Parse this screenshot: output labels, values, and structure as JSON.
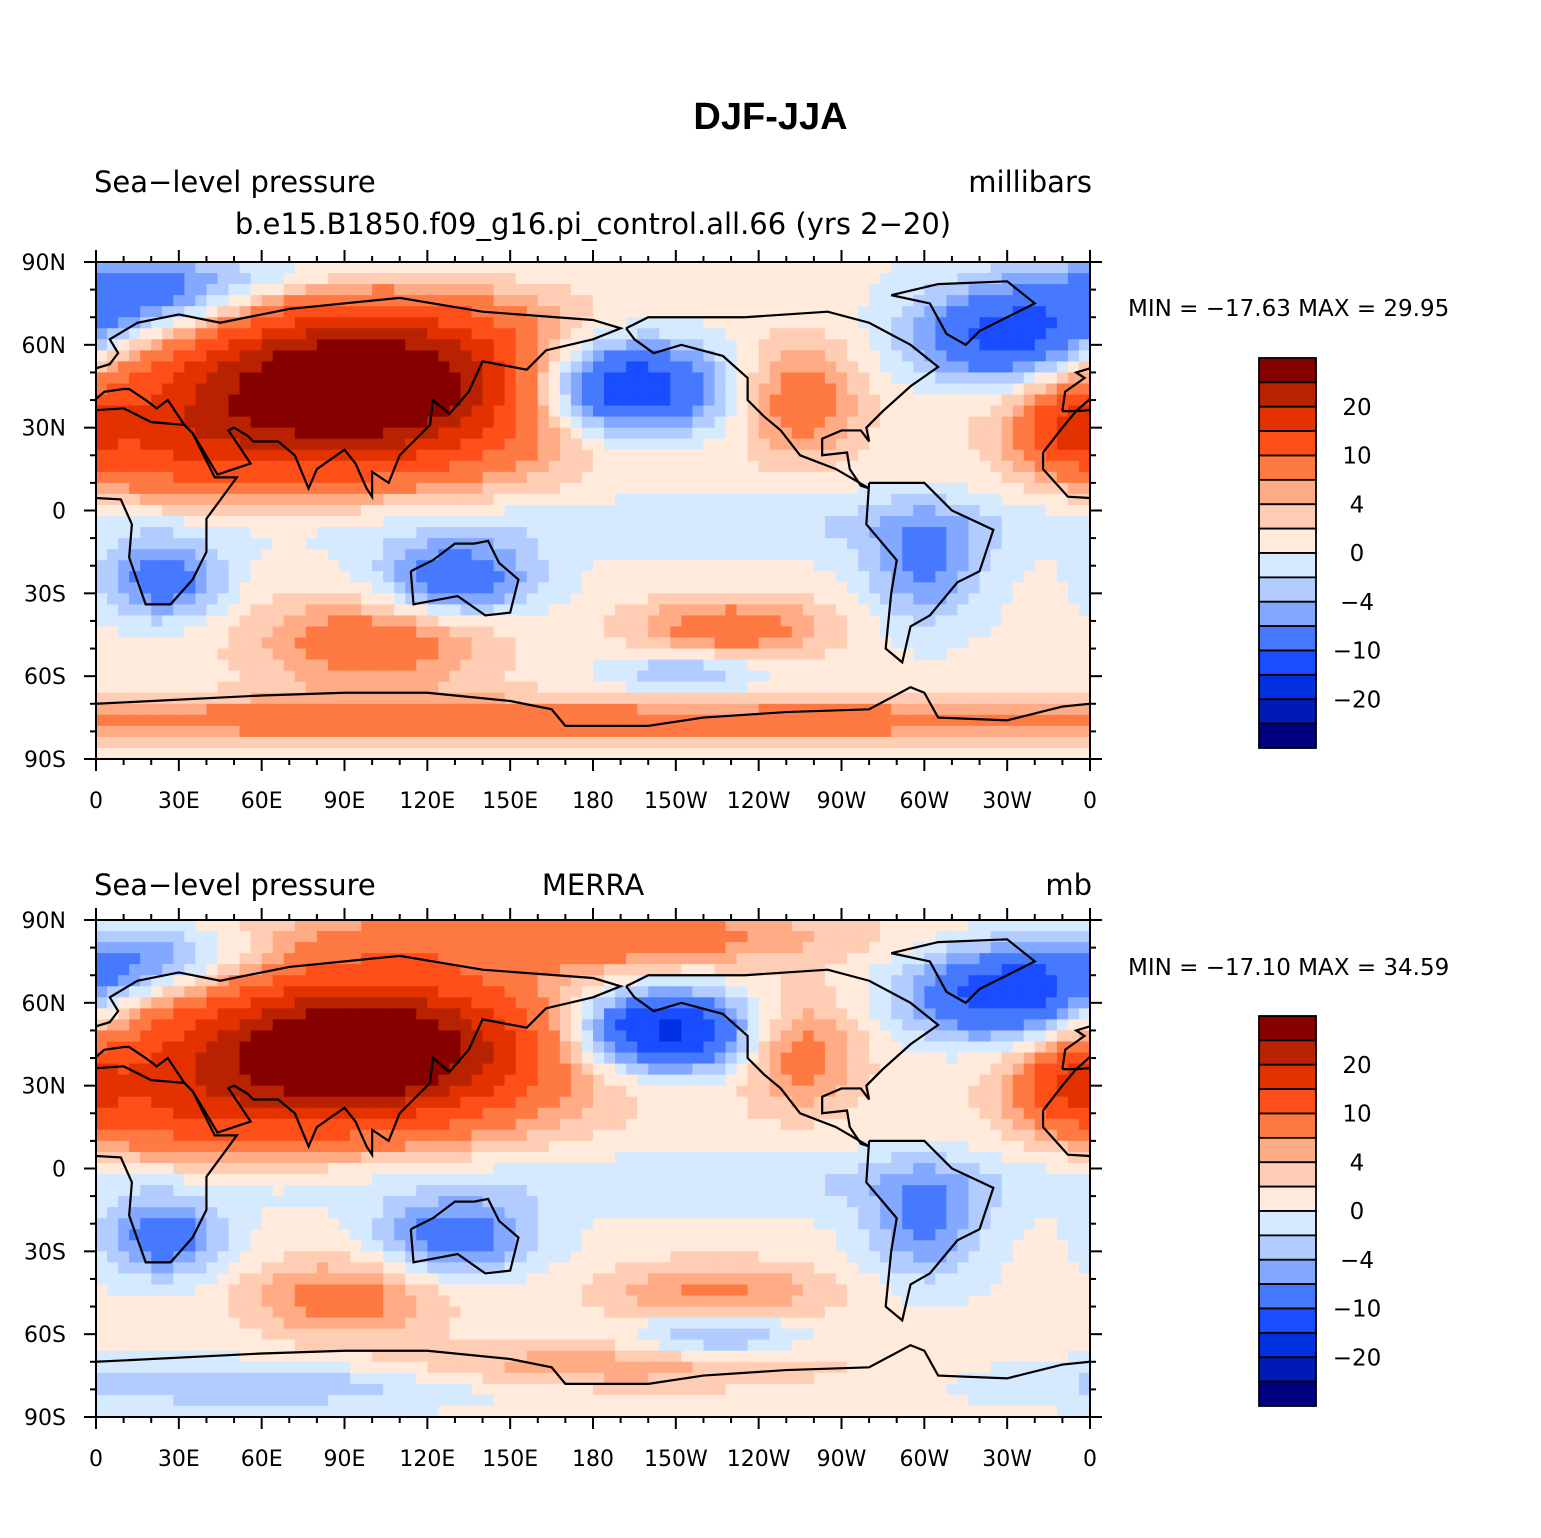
{
  "figure_title": "DJF-JJA",
  "chart_data": [
    {
      "type": "heatmap",
      "left_title": "Sea−level pressure",
      "center_title": "b.e15.B1850.f09_g16.pi_control.all.66 (yrs 2−20)",
      "right_title": "millibars",
      "stats": {
        "min_label": "MIN =",
        "min": "−17.63",
        "max_label": "MAX =",
        "max": "29.95"
      },
      "field_blobs": [
        [
          100,
          45,
          40,
          18,
          24
        ],
        [
          80,
          45,
          60,
          25,
          12
        ],
        [
          30,
          25,
          30,
          15,
          8
        ],
        [
          190,
          45,
          25,
          12,
          -17
        ],
        [
          330,
          62,
          25,
          12,
          -13
        ],
        [
          20,
          75,
          30,
          10,
          -10
        ],
        [
          255,
          40,
          15,
          15,
          8
        ],
        [
          352,
          30,
          12,
          10,
          10
        ],
        [
          25,
          -25,
          15,
          10,
          -9
        ],
        [
          130,
          -25,
          20,
          10,
          -10
        ],
        [
          300,
          -20,
          15,
          15,
          -7
        ],
        [
          230,
          -43,
          25,
          8,
          8
        ],
        [
          100,
          -48,
          30,
          12,
          8
        ],
        [
          180,
          -76,
          400,
          6,
          7
        ],
        [
          180,
          -5,
          400,
          8,
          -2.5
        ],
        [
          215,
          -58,
          20,
          6,
          -5
        ],
        [
          60,
          85,
          60,
          6,
          -4
        ]
      ]
    },
    {
      "type": "heatmap",
      "left_title": "Sea−level pressure",
      "center_title": "MERRA",
      "right_title": "mb",
      "stats": {
        "min_label": "MIN =",
        "min": "−17.10",
        "max_label": "MAX =",
        "max": "34.59"
      },
      "field_blobs": [
        [
          100,
          42,
          38,
          16,
          24
        ],
        [
          80,
          45,
          60,
          25,
          12
        ],
        [
          30,
          25,
          30,
          15,
          8
        ],
        [
          205,
          50,
          22,
          10,
          -18
        ],
        [
          330,
          62,
          25,
          12,
          -14
        ],
        [
          20,
          75,
          30,
          10,
          -9
        ],
        [
          255,
          42,
          15,
          15,
          7
        ],
        [
          352,
          30,
          12,
          10,
          10
        ],
        [
          25,
          -25,
          15,
          10,
          -9
        ],
        [
          130,
          -25,
          20,
          10,
          -9
        ],
        [
          300,
          -20,
          15,
          15,
          -7
        ],
        [
          225,
          -45,
          30,
          8,
          6
        ],
        [
          90,
          -47,
          25,
          10,
          7
        ],
        [
          180,
          -72,
          60,
          6,
          5
        ],
        [
          60,
          -78,
          60,
          6,
          -5
        ],
        [
          180,
          -5,
          400,
          8,
          -2.5
        ],
        [
          225,
          -60,
          20,
          6,
          -6
        ],
        [
          180,
          84,
          60,
          8,
          8
        ]
      ]
    }
  ],
  "axes": {
    "lon_labels": [
      "0",
      "30E",
      "60E",
      "90E",
      "120E",
      "150E",
      "180",
      "150W",
      "120W",
      "90W",
      "60W",
      "30W",
      "0"
    ],
    "lat_labels": [
      "90N",
      "60N",
      "30N",
      "0",
      "30S",
      "60S",
      "90S"
    ],
    "lon_range": [
      0,
      360
    ],
    "lat_range": [
      -90,
      90
    ]
  },
  "colorbar": {
    "levels": [
      -25,
      -20,
      -15,
      -10,
      -6,
      -4,
      -2,
      0,
      2,
      4,
      6,
      10,
      15,
      20,
      25
    ],
    "labels": [
      "20",
      "10",
      "4",
      "0",
      "−4",
      "−10",
      "−20"
    ],
    "colors": [
      "#870000",
      "#b82200",
      "#e33200",
      "#ff4f19",
      "#ff7a43",
      "#ffab85",
      "#ffcdb3",
      "#ffeadb",
      "#d6eaff",
      "#b3ccff",
      "#82a8ff",
      "#4779ff",
      "#1a4dff",
      "#0030e0",
      "#001ab5",
      "#000080"
    ]
  }
}
